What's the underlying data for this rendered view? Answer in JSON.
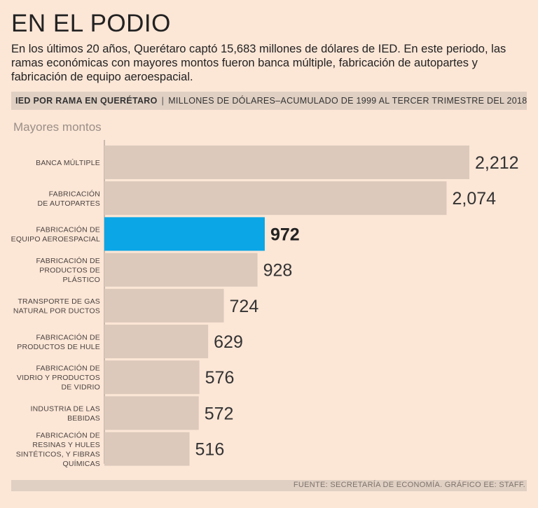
{
  "title": "EN EL PODIO",
  "subtitle": "En los últimos 20 años, Querétaro captó 15,683 millones de dólares de IED. En este periodo, las ramas económicas con mayores montos fueron banca múltiple, fabricación de autopartes y fabricación de equipo aeroespacial.",
  "banner": {
    "bold": "IED POR RAMA EN QUERÉTARO",
    "separator": "|",
    "rest": "MILLONES DE DÓLARES–ACUMULADO DE 1999 AL TERCER TRIMESTRE DEL 2018"
  },
  "section_label": "Mayores montos",
  "footer": "FUENTE: SECRETARÍA DE ECONOMÍA. GRÁFICO EE: STAFF.",
  "colors": {
    "bar": "#dcc9bb",
    "highlight": "#0aa6e6",
    "axis": "#9a8f88",
    "background": "#fce6d6"
  },
  "chart_data": {
    "type": "bar",
    "orientation": "horizontal",
    "title": "Mayores montos",
    "unit": "Millones de dólares",
    "xlim": [
      0,
      2300
    ],
    "highlight_index": 2,
    "categories": [
      [
        "BANCA MÚLTIPLE"
      ],
      [
        "FABRICACIÓN",
        "DE AUTOPARTES"
      ],
      [
        "FABRICACIÓN DE",
        "EQUIPO AEROESPACIAL"
      ],
      [
        "FABRICACIÓN DE",
        "PRODUCTOS DE",
        "PLÁSTICO"
      ],
      [
        "TRANSPORTE DE GAS",
        "NATURAL POR DUCTOS"
      ],
      [
        "FABRICACIÓN DE",
        "PRODUCTOS DE HULE"
      ],
      [
        "FABRICACIÓN DE",
        "VIDRIO Y PRODUCTOS",
        "DE VIDRIO"
      ],
      [
        "INDUSTRIA DE LAS",
        "BEBIDAS"
      ],
      [
        "FABRICACIÓN DE",
        "RESINAS Y HULES",
        "SINTÉTICOS, Y FIBRAS",
        "QUÍMICAS"
      ]
    ],
    "values": [
      2212,
      2074,
      972,
      928,
      724,
      629,
      576,
      572,
      516
    ],
    "labels": [
      "2,212",
      "2,074",
      "972",
      "928",
      "724",
      "629",
      "576",
      "572",
      "516"
    ]
  }
}
